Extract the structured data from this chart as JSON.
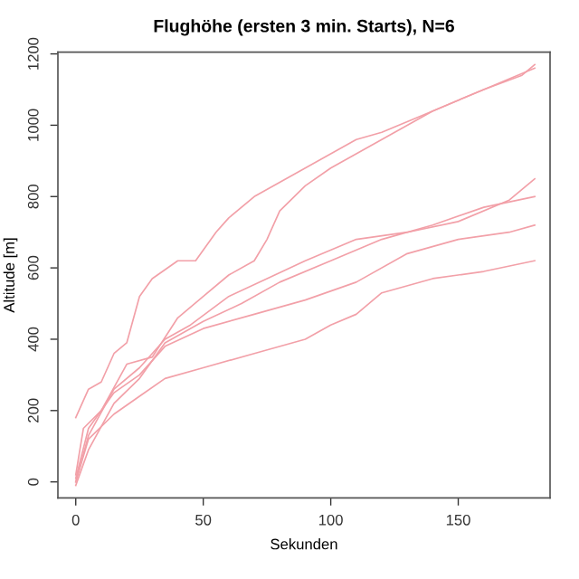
{
  "chart_data": {
    "type": "line",
    "title": "Flughöhe (ersten 3 min. Starts), N=6",
    "xlabel": "Sekunden",
    "ylabel": "Altitude [m]",
    "xlim": [
      -7,
      186
    ],
    "ylim": [
      -45,
      1205
    ],
    "xticks": [
      0,
      50,
      100,
      150
    ],
    "yticks": [
      0,
      200,
      400,
      600,
      800,
      1000,
      1200
    ],
    "grid": false,
    "marker": "none",
    "line_style": "solid",
    "series": [
      {
        "color": "#f2a0a8",
        "x": [
          0,
          5,
          10,
          15,
          20,
          25,
          30,
          40,
          47,
          55,
          60,
          70,
          80,
          90,
          100,
          110,
          120,
          140,
          160,
          175,
          180
        ],
        "values": [
          180,
          260,
          280,
          360,
          390,
          520,
          570,
          620,
          620,
          700,
          740,
          800,
          840,
          880,
          920,
          960,
          980,
          1040,
          1100,
          1140,
          1170
        ]
      },
      {
        "color": "#f2a0a8",
        "x": [
          0,
          3,
          10,
          20,
          30,
          40,
          50,
          60,
          70,
          75,
          80,
          90,
          100,
          120,
          140,
          160,
          180
        ],
        "values": [
          20,
          150,
          200,
          330,
          350,
          460,
          520,
          580,
          620,
          680,
          760,
          830,
          880,
          960,
          1040,
          1100,
          1160
        ]
      },
      {
        "color": "#f2a0a8",
        "x": [
          0,
          5,
          15,
          25,
          35,
          45,
          60,
          75,
          90,
          110,
          130,
          150,
          170,
          180
        ],
        "values": [
          0,
          130,
          260,
          320,
          400,
          440,
          520,
          570,
          620,
          680,
          700,
          730,
          790,
          850
        ]
      },
      {
        "color": "#f2a0a8",
        "x": [
          0,
          5,
          15,
          25,
          35,
          50,
          65,
          80,
          100,
          120,
          140,
          160,
          180
        ],
        "values": [
          -10,
          90,
          220,
          290,
          390,
          450,
          500,
          560,
          620,
          680,
          720,
          770,
          800
        ]
      },
      {
        "color": "#f2a0a8",
        "x": [
          0,
          5,
          15,
          25,
          35,
          50,
          70,
          90,
          110,
          130,
          150,
          170,
          180
        ],
        "values": [
          10,
          150,
          250,
          300,
          380,
          430,
          470,
          510,
          560,
          640,
          680,
          700,
          720
        ]
      },
      {
        "color": "#f2a0a8",
        "x": [
          0,
          5,
          15,
          25,
          35,
          50,
          70,
          90,
          100,
          110,
          120,
          140,
          160,
          180
        ],
        "values": [
          0,
          120,
          190,
          240,
          290,
          320,
          360,
          400,
          440,
          470,
          530,
          570,
          590,
          620
        ]
      }
    ]
  }
}
